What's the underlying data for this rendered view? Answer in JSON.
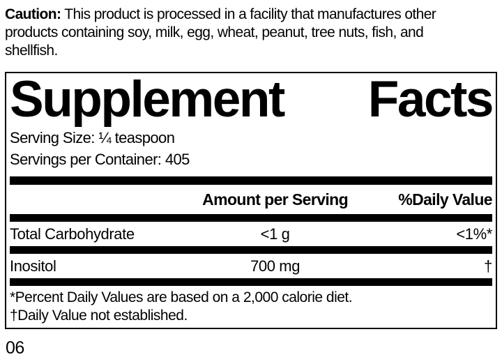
{
  "caution": {
    "label": "Caution:",
    "lines": [
      "This product is processed in a facility that manufactures other",
      "products containing soy, milk, egg, wheat, peanut, tree nuts, fish, and",
      "shellfish."
    ]
  },
  "panel": {
    "title_words": [
      "Supplement",
      "Facts"
    ],
    "serving_size_label": "Serving Size:",
    "serving_size_value": "¼ teaspoon",
    "servings_per_container_label": "Servings per Container:",
    "servings_per_container_value": "405",
    "table": {
      "amount_header": "Amount per Serving",
      "daily_value_header": "%Daily Value",
      "rows": [
        {
          "name": "Total Carbohydrate",
          "amount": "<1 g",
          "daily_value": "<1%*"
        },
        {
          "name": "Inositol",
          "amount": "700 mg",
          "daily_value": "†"
        }
      ],
      "footnotes": [
        "*Percent Daily Values are based on a 2,000 calorie diet.",
        "†Daily Value not established."
      ]
    }
  },
  "footer": {
    "page_code": "06"
  },
  "colors": {
    "ink": "#000000",
    "background": "#ffffff"
  }
}
